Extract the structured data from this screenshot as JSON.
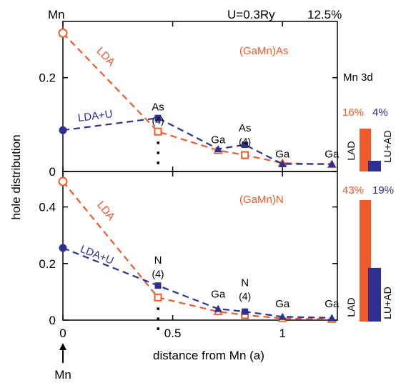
{
  "colors": {
    "lda": "#f05a28",
    "ldau": "#2e3192",
    "text": "#000000"
  },
  "header": {
    "left": "Mn",
    "center": "U=0.3Ry",
    "right": "12.5%"
  },
  "bottom_annotation": {
    "arrow_icon": "up-arrow-icon",
    "label": "Mn"
  },
  "chart_data": [
    {
      "type": "line",
      "title": "(GaMn)As",
      "xlabel": "distance from Mn (a)",
      "ylabel": "hole distribution",
      "xlim": [
        0,
        1.25
      ],
      "ylim": [
        0,
        0.3
      ],
      "yticks": [
        0,
        0.2
      ],
      "xticks": [
        0,
        0.5,
        1
      ],
      "series": [
        {
          "name": "LDA",
          "x": [
            0,
            0.433,
            0.707,
            0.829,
            1.0,
            1.225
          ],
          "y": [
            0.295,
            0.085,
            0.045,
            0.035,
            0.018,
            0.015
          ]
        },
        {
          "name": "LDA+U",
          "x": [
            0,
            0.433,
            0.707,
            0.829,
            1.0,
            1.225
          ],
          "y": [
            0.088,
            0.114,
            0.048,
            0.057,
            0.016,
            0.016
          ]
        }
      ],
      "site_labels": [
        {
          "x": 0.433,
          "y": 0.13,
          "name": "As",
          "count": "(4)"
        },
        {
          "x": 0.707,
          "y": 0.06,
          "name": "Ga",
          "count": ""
        },
        {
          "x": 0.829,
          "y": 0.085,
          "name": "As",
          "count": "(4)"
        },
        {
          "x": 1.0,
          "y": 0.03,
          "name": "Ga",
          "count": ""
        },
        {
          "x": 1.225,
          "y": 0.03,
          "name": "Ga",
          "count": ""
        }
      ],
      "inset": {
        "title": "Mn 3d",
        "bars": [
          {
            "name": "LAD",
            "value": 16,
            "pct_label": "16%"
          },
          {
            "name": "LU+AD",
            "value": 4,
            "pct_label": "4%"
          }
        ]
      }
    },
    {
      "type": "line",
      "title": "(GaMn)N",
      "xlabel": "distance from Mn (a)",
      "ylabel": "hole distribution",
      "xlim": [
        0,
        1.25
      ],
      "ylim": [
        0,
        0.5
      ],
      "yticks": [
        0,
        0.2,
        0.4
      ],
      "xticks": [
        0,
        0.5,
        1
      ],
      "series": [
        {
          "name": "LDA",
          "x": [
            0,
            0.433,
            0.707,
            0.829,
            1.0,
            1.225
          ],
          "y": [
            0.49,
            0.08,
            0.03,
            0.018,
            0.006,
            0.003
          ]
        },
        {
          "name": "LDA+U",
          "x": [
            0,
            0.433,
            0.707,
            0.829,
            1.0,
            1.225
          ],
          "y": [
            0.255,
            0.122,
            0.04,
            0.03,
            0.012,
            0.008
          ]
        }
      ],
      "site_labels": [
        {
          "x": 0.433,
          "y": 0.2,
          "name": "N",
          "count": "(4)"
        },
        {
          "x": 0.707,
          "y": 0.08,
          "name": "Ga",
          "count": ""
        },
        {
          "x": 0.829,
          "y": 0.12,
          "name": "N",
          "count": "(4)"
        },
        {
          "x": 1.0,
          "y": 0.045,
          "name": "Ga",
          "count": ""
        },
        {
          "x": 1.225,
          "y": 0.045,
          "name": "Ga",
          "count": ""
        }
      ],
      "inset": {
        "title": "",
        "bars": [
          {
            "name": "LAD",
            "value": 43,
            "pct_label": "43%"
          },
          {
            "name": "LU+AD",
            "value": 19,
            "pct_label": "19%"
          }
        ]
      }
    }
  ]
}
